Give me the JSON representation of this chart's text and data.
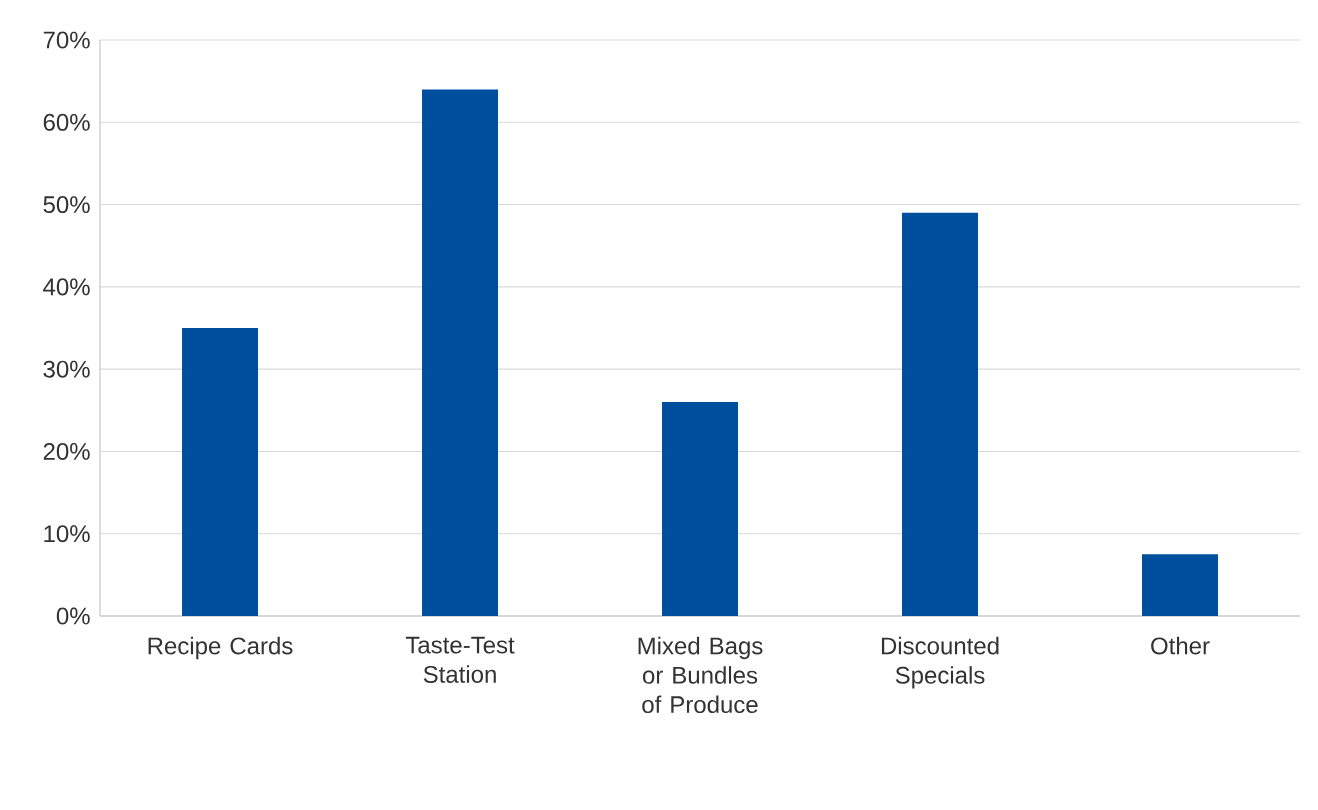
{
  "chart_data": {
    "type": "bar",
    "categories": [
      "Recipe Cards",
      "Taste-Test Station",
      "Mixed Bags or Bundles of Produce",
      "Discounted Specials",
      "Other"
    ],
    "values": [
      35,
      64,
      26,
      49,
      7.5
    ],
    "color": "#004f9e",
    "ylim": [
      0,
      70
    ],
    "yticks": [
      {
        "value": 0,
        "label": "0%"
      },
      {
        "value": 10,
        "label": "10%"
      },
      {
        "value": 20,
        "label": "20%"
      },
      {
        "value": 30,
        "label": "30%"
      },
      {
        "value": 40,
        "label": "40%"
      },
      {
        "value": 50,
        "label": "50%"
      },
      {
        "value": 60,
        "label": "60%"
      },
      {
        "value": 70,
        "label": "70%"
      }
    ],
    "grid": "y"
  }
}
